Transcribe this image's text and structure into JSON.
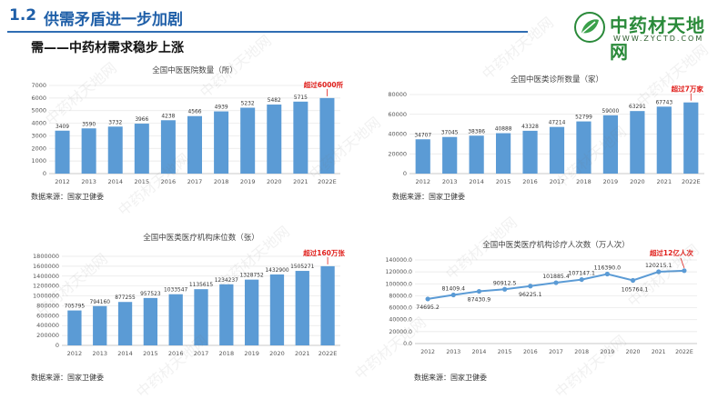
{
  "header": {
    "section_number": "1.2",
    "section_title": "供需矛盾进一步加剧"
  },
  "logo": {
    "text": "中药材天地网",
    "url": "WWW.ZYCTD.COM"
  },
  "subtitle": "需——中药材需求稳步上涨",
  "watermark_text": "中药材天地网",
  "sources": [
    "数据来源：国家卫健委",
    "数据来源：国家卫健委",
    "数据来源：国家卫健委",
    "数据来源：国家卫健委"
  ],
  "colors": {
    "bar": "#5b9bd5",
    "accent_red": "#e0201c",
    "title_blue": "#1f5fa8"
  },
  "chart_data": [
    {
      "type": "bar",
      "title": "全国中医医院数量（所）",
      "categories": [
        "2012",
        "2013",
        "2014",
        "2015",
        "2016",
        "2017",
        "2018",
        "2019",
        "2020",
        "2021",
        "2022E"
      ],
      "values": [
        3409,
        3590,
        3732,
        3966,
        4238,
        4566,
        4939,
        5232,
        5482,
        5715,
        6000
      ],
      "value_labels": [
        "3409",
        "3590",
        "3732",
        "3966",
        "4238",
        "4566",
        "4939",
        "5232",
        "5482",
        "5715",
        ""
      ],
      "ylim": [
        0,
        7000
      ],
      "yticks": [
        "0",
        "1000",
        "2000",
        "3000",
        "4000",
        "5000",
        "6000",
        "7000"
      ],
      "annotation": "超过6000所",
      "grid": true
    },
    {
      "type": "bar",
      "title": "全国中医类诊所数量（家）",
      "categories": [
        "2012",
        "2013",
        "2014",
        "2015",
        "2016",
        "2017",
        "2018",
        "2019",
        "2020",
        "2021",
        "2022E"
      ],
      "values": [
        34707,
        37045,
        38386,
        40888,
        43328,
        47214,
        52799,
        59000,
        63291,
        67743,
        72000
      ],
      "value_labels": [
        "34707",
        "37045",
        "38386",
        "40888",
        "43328",
        "47214",
        "52799",
        "59000",
        "63291",
        "67743",
        ""
      ],
      "ylim": [
        0,
        80000
      ],
      "yticks": [
        "0",
        "20000",
        "40000",
        "60000",
        "80000"
      ],
      "annotation": "超过7万家",
      "grid": true
    },
    {
      "type": "bar",
      "title": "全国中医类医疗机构床位数（张）",
      "categories": [
        "2012",
        "2013",
        "2014",
        "2015",
        "2016",
        "2017",
        "2018",
        "2019",
        "2020",
        "2021",
        "2022E"
      ],
      "values": [
        705795,
        794160,
        877255,
        957523,
        1033547,
        1135615,
        1234237,
        1328752,
        1432900,
        1505271,
        1600000
      ],
      "value_labels": [
        "705795",
        "794160",
        "877255",
        "957523",
        "1033547",
        "1135615",
        "1234237",
        "1328752",
        "1432900",
        "1505271",
        ""
      ],
      "ylim": [
        0,
        1800000
      ],
      "yticks": [
        "0",
        "200000",
        "400000",
        "600000",
        "800000",
        "1000000",
        "1200000",
        "1400000",
        "1600000",
        "1800000"
      ],
      "annotation": "超过160万张",
      "grid": true
    },
    {
      "type": "line",
      "title": "全国中医类医疗机构诊疗人次数（万人次）",
      "categories": [
        "2012",
        "2013",
        "2014",
        "2015",
        "2016",
        "2017",
        "2018",
        "2019",
        "2020",
        "2021",
        "2022E"
      ],
      "values": [
        74695.2,
        81409.4,
        87430.9,
        90912.5,
        96225.1,
        101885.4,
        107147.1,
        116390.0,
        105764.1,
        120215.1,
        122000
      ],
      "value_labels": [
        "74695.2",
        "81409.4",
        "87430.9",
        "90912.5",
        "96225.1",
        "101885.4",
        "107147.1",
        "116390.0",
        "105764.1",
        "120215.1",
        ""
      ],
      "ylim": [
        0,
        140000
      ],
      "yticks": [
        "0.0",
        "20000.0",
        "40000.0",
        "60000.0",
        "80000.0",
        "100000.0",
        "120000.0",
        "140000.0"
      ],
      "annotation": "超过12亿人次",
      "grid": true
    }
  ]
}
